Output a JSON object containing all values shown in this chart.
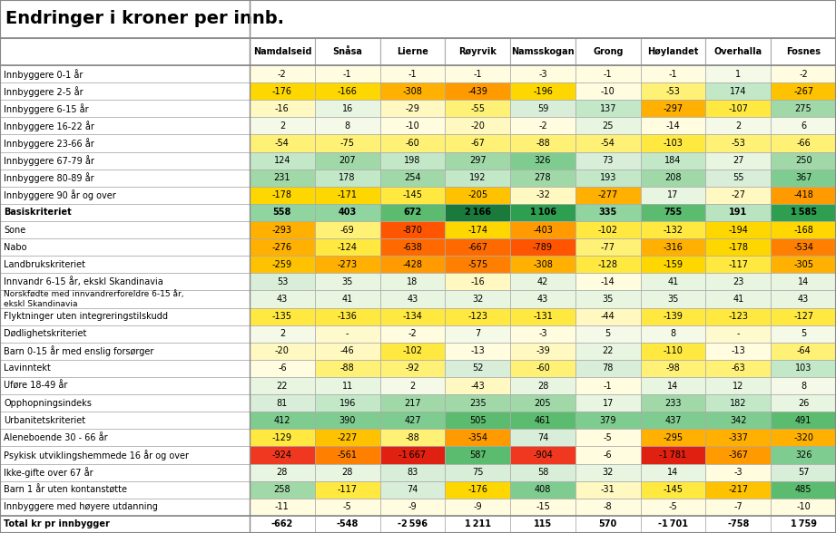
{
  "title": "Endringer i kroner per innb.",
  "columns": [
    "Namdalseid",
    "Snåsa",
    "Lierne",
    "Røyrvik",
    "Namsskogan",
    "Grong",
    "Høylandet",
    "Overhalla",
    "Fosnes"
  ],
  "rows": [
    {
      "label": "Innbyggere 0-1 år",
      "values": [
        -2,
        -1,
        -1,
        -1,
        -3,
        -1,
        -1,
        1,
        -2
      ]
    },
    {
      "label": "Innbyggere 2-5 år",
      "values": [
        -176,
        -166,
        -308,
        -439,
        -196,
        -10,
        -53,
        174,
        -267
      ]
    },
    {
      "label": "Innbyggere 6-15 år",
      "values": [
        -16,
        16,
        -29,
        -55,
        59,
        137,
        -297,
        -107,
        275
      ]
    },
    {
      "label": "Innbyggere 16-22 år",
      "values": [
        2,
        8,
        -10,
        -20,
        -2,
        25,
        -14,
        2,
        6
      ]
    },
    {
      "label": "Innbyggere 23-66 år",
      "values": [
        -54,
        -75,
        -60,
        -67,
        -88,
        -54,
        -103,
        -53,
        -66
      ]
    },
    {
      "label": "Innbyggere 67-79 år",
      "values": [
        124,
        207,
        198,
        297,
        326,
        73,
        184,
        27,
        250
      ]
    },
    {
      "label": "Innbyggere 80-89 år",
      "values": [
        231,
        178,
        254,
        192,
        278,
        193,
        208,
        55,
        367
      ]
    },
    {
      "label": "Innbyggere 90 år og over",
      "values": [
        -178,
        -171,
        -145,
        -205,
        -32,
        -277,
        17,
        -27,
        -418
      ]
    },
    {
      "label": "Basiskriteriet",
      "values": [
        558,
        403,
        672,
        2166,
        1106,
        335,
        755,
        191,
        1585
      ],
      "bold": true
    },
    {
      "label": "Sone",
      "values": [
        -293,
        -69,
        -870,
        -174,
        -403,
        -102,
        -132,
        -194,
        -168
      ]
    },
    {
      "label": "Nabo",
      "values": [
        -276,
        -124,
        -638,
        -667,
        -789,
        -77,
        -316,
        -178,
        -534
      ]
    },
    {
      "label": "Landbrukskriteriet",
      "values": [
        -259,
        -273,
        -428,
        -575,
        -308,
        -128,
        -159,
        -117,
        -305
      ]
    },
    {
      "label": "Innvandr 6-15 år, ekskl Skandinavia",
      "values": [
        53,
        35,
        18,
        -16,
        42,
        -14,
        41,
        23,
        14
      ]
    },
    {
      "label": "Norskfødte med innvandrerforeldre 6-15 år,\nekskl Skandinavia",
      "values": [
        43,
        41,
        43,
        32,
        43,
        35,
        35,
        41,
        43
      ]
    },
    {
      "label": "Flyktninger uten integreringstilskudd",
      "values": [
        -135,
        -136,
        -134,
        -123,
        -131,
        -44,
        -139,
        -123,
        -127
      ]
    },
    {
      "label": "Dødlighetskriteriet",
      "values": [
        2,
        null,
        -2,
        7,
        -3,
        5,
        8,
        null,
        5
      ]
    },
    {
      "label": "Barn 0-15 år med enslig forsørger",
      "values": [
        -20,
        -46,
        -102,
        -13,
        -39,
        22,
        -110,
        -13,
        -64
      ]
    },
    {
      "label": "Lavinntekt",
      "values": [
        -6,
        -88,
        -92,
        52,
        -60,
        78,
        -98,
        -63,
        103
      ]
    },
    {
      "label": "Uføre 18-49 år",
      "values": [
        22,
        11,
        2,
        -43,
        28,
        -1,
        14,
        12,
        8
      ]
    },
    {
      "label": "Opphopningsindeks",
      "values": [
        81,
        196,
        217,
        235,
        205,
        17,
        233,
        182,
        26
      ]
    },
    {
      "label": "Urbanitetskriteriet",
      "values": [
        412,
        390,
        427,
        505,
        461,
        379,
        437,
        342,
        491
      ]
    },
    {
      "label": "Aleneboende 30 - 66 år",
      "values": [
        -129,
        -227,
        -88,
        -354,
        74,
        -5,
        -295,
        -337,
        -320
      ]
    },
    {
      "label": "Psykisk utviklingshemmede 16 år og over",
      "values": [
        -924,
        -561,
        -1667,
        587,
        -904,
        -6,
        -1781,
        -367,
        326
      ]
    },
    {
      "label": "Ikke-gifte over 67 år",
      "values": [
        28,
        28,
        83,
        75,
        58,
        32,
        14,
        -3,
        57
      ]
    },
    {
      "label": "Barn 1 år uten kontanstøtte",
      "values": [
        258,
        -117,
        74,
        -176,
        408,
        -31,
        -145,
        -217,
        485
      ]
    },
    {
      "label": "Innbyggere med høyere utdanning",
      "values": [
        -11,
        -5,
        -9,
        -9,
        -15,
        -8,
        -5,
        -7,
        -10
      ]
    },
    {
      "label": "Total kr pr innbygger",
      "values": [
        -662,
        -548,
        -2596,
        1211,
        115,
        570,
        -1701,
        -758,
        1759
      ],
      "bold": true,
      "total": true
    }
  ]
}
